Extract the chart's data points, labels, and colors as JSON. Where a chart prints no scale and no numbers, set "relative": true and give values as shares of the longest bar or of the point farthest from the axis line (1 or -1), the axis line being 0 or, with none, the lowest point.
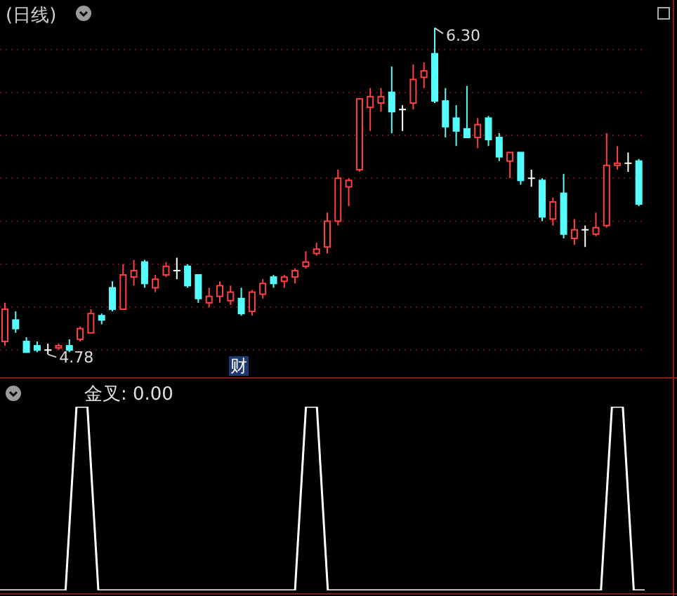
{
  "chart_data": [
    {
      "type": "candlestick",
      "title": "(日线)",
      "categories": [
        null,
        null,
        null,
        null,
        null,
        null,
        null,
        null,
        null,
        null,
        null,
        null,
        null,
        null,
        null,
        null,
        null,
        null,
        null,
        null,
        null,
        null,
        null,
        null,
        null,
        null,
        null,
        null,
        null,
        null,
        null,
        null,
        null,
        null,
        null,
        null,
        null,
        null,
        null,
        null,
        null,
        null,
        null,
        null,
        null,
        null,
        null,
        null,
        null,
        null,
        null,
        null,
        null,
        null,
        null,
        null,
        null,
        null,
        null,
        null
      ],
      "ohlc": [
        [
          4.84,
          5.02,
          4.82,
          4.99
        ],
        [
          4.94,
          4.98,
          4.88,
          4.9
        ],
        [
          4.84,
          4.86,
          4.79,
          4.79
        ],
        [
          4.82,
          4.84,
          4.79,
          4.8
        ],
        [
          4.8,
          4.83,
          4.78,
          4.8
        ],
        [
          4.81,
          4.83,
          4.8,
          4.82
        ],
        [
          4.82,
          4.85,
          4.79,
          4.8
        ],
        [
          4.85,
          4.91,
          4.84,
          4.9
        ],
        [
          4.88,
          4.99,
          4.88,
          4.97
        ],
        [
          4.96,
          4.97,
          4.92,
          4.94
        ],
        [
          5.09,
          5.12,
          4.98,
          4.99
        ],
        [
          4.99,
          5.2,
          4.99,
          5.15
        ],
        [
          5.14,
          5.22,
          5.1,
          5.17
        ],
        [
          5.21,
          5.22,
          5.09,
          5.11
        ],
        [
          5.09,
          5.15,
          5.07,
          5.13
        ],
        [
          5.15,
          5.21,
          5.14,
          5.19
        ],
        [
          5.17,
          5.23,
          5.13,
          5.17
        ],
        [
          5.19,
          5.2,
          5.09,
          5.1
        ],
        [
          5.15,
          5.15,
          5.02,
          5.04
        ],
        [
          5.02,
          5.09,
          5.0,
          5.05
        ],
        [
          5.05,
          5.12,
          5.02,
          5.1
        ],
        [
          5.03,
          5.1,
          5.01,
          5.07
        ],
        [
          5.04,
          5.09,
          4.96,
          4.97
        ],
        [
          4.98,
          5.08,
          4.96,
          5.07
        ],
        [
          5.06,
          5.13,
          5.04,
          5.11
        ],
        [
          5.14,
          5.15,
          5.09,
          5.11
        ],
        [
          5.12,
          5.15,
          5.09,
          5.14
        ],
        [
          5.14,
          5.18,
          5.11,
          5.17
        ],
        [
          5.19,
          5.26,
          5.18,
          5.21
        ],
        [
          5.25,
          5.3,
          5.24,
          5.27
        ],
        [
          5.28,
          5.44,
          5.25,
          5.4
        ],
        [
          5.4,
          5.64,
          5.38,
          5.6
        ],
        [
          5.56,
          5.6,
          5.47,
          5.59
        ],
        [
          5.64,
          5.97,
          5.63,
          5.97
        ],
        [
          5.93,
          6.02,
          5.82,
          5.98
        ],
        [
          5.95,
          6.02,
          5.91,
          5.98
        ],
        [
          6.0,
          6.12,
          5.81,
          5.91
        ],
        [
          5.92,
          5.94,
          5.82,
          5.92
        ],
        [
          5.95,
          6.13,
          5.92,
          6.06
        ],
        [
          6.07,
          6.14,
          6.02,
          6.1
        ],
        [
          6.18,
          6.3,
          5.95,
          5.96
        ],
        [
          5.96,
          6.02,
          5.79,
          5.84
        ],
        [
          5.88,
          5.94,
          5.75,
          5.82
        ],
        [
          5.83,
          6.03,
          5.79,
          5.79
        ],
        [
          5.79,
          5.88,
          5.74,
          5.85
        ],
        [
          5.88,
          5.89,
          5.75,
          5.78
        ],
        [
          5.79,
          5.81,
          5.68,
          5.7
        ],
        [
          5.68,
          5.72,
          5.6,
          5.72
        ],
        [
          5.72,
          5.72,
          5.57,
          5.59
        ],
        [
          5.6,
          5.64,
          5.56,
          5.6
        ],
        [
          5.59,
          5.6,
          5.4,
          5.42
        ],
        [
          5.41,
          5.51,
          5.38,
          5.49
        ],
        [
          5.53,
          5.62,
          5.32,
          5.34
        ],
        [
          5.32,
          5.41,
          5.29,
          5.36
        ],
        [
          5.36,
          5.38,
          5.28,
          5.36
        ],
        [
          5.34,
          5.44,
          5.33,
          5.37
        ],
        [
          5.38,
          5.81,
          5.37,
          5.66
        ],
        [
          5.66,
          5.75,
          5.64,
          5.67
        ],
        [
          5.67,
          5.72,
          5.63,
          5.67
        ],
        [
          5.68,
          5.69,
          5.47,
          5.48
        ]
      ],
      "colors": [
        "#ff4040",
        "#54fcfc",
        "#54fcfc",
        "#54fcfc",
        "#ffffff",
        "#ff4040",
        "#54fcfc",
        "#ff4040",
        "#ff4040",
        "#54fcfc",
        "#54fcfc",
        "#ff4040",
        "#ff4040",
        "#54fcfc",
        "#ff4040",
        "#ff4040",
        "#ffffff",
        "#54fcfc",
        "#54fcfc",
        "#ff4040",
        "#ff4040",
        "#ff4040",
        "#54fcfc",
        "#ff4040",
        "#ff4040",
        "#54fcfc",
        "#ff4040",
        "#ff4040",
        "#ff4040",
        "#ff4040",
        "#ff4040",
        "#ff4040",
        "#ff4040",
        "#ff4040",
        "#ff4040",
        "#ff4040",
        "#54fcfc",
        "#ffffff",
        "#ff4040",
        "#ff4040",
        "#54fcfc",
        "#54fcfc",
        "#54fcfc",
        "#54fcfc",
        "#ff4040",
        "#54fcfc",
        "#54fcfc",
        "#ff4040",
        "#54fcfc",
        "#ffffff",
        "#54fcfc",
        "#ff4040",
        "#54fcfc",
        "#ff4040",
        "#ffffff",
        "#ff4040",
        "#ff4040",
        "#ff4040",
        "#ffffff",
        "#54fcfc"
      ],
      "ylim": [
        4.68,
        6.43
      ],
      "yticks": [
        {
          "value": 4.8,
          "label": null
        },
        {
          "value": 5.0,
          "label": null
        },
        {
          "value": 5.2,
          "label": null
        },
        {
          "value": 5.4,
          "label": null
        },
        {
          "value": 5.6,
          "label": null
        },
        {
          "value": 5.8,
          "label": null
        },
        {
          "value": 6.0,
          "label": null
        },
        {
          "value": 6.2,
          "label": null
        }
      ],
      "grid": "y",
      "annotations": [
        "6.30",
        "4.78",
        "财"
      ]
    },
    {
      "type": "line",
      "title": "金叉: 0.00",
      "relative": true,
      "categories": [
        null,
        null,
        null,
        null,
        null,
        null,
        null,
        null,
        null,
        null,
        null,
        null,
        null,
        null,
        null,
        null,
        null,
        null,
        null,
        null,
        null,
        null,
        null,
        null,
        null,
        null,
        null,
        null,
        null,
        null,
        null,
        null,
        null,
        null,
        null,
        null,
        null,
        null,
        null,
        null,
        null,
        null,
        null,
        null,
        null,
        null,
        null,
        null,
        null,
        null,
        null,
        null,
        null,
        null,
        null,
        null,
        null,
        null,
        null,
        null
      ],
      "series": [
        {
          "color": "#ffffff",
          "values": [
            0,
            0,
            0,
            0,
            0,
            0,
            0,
            1,
            1,
            0,
            0,
            0,
            0,
            0,
            0,
            0,
            0,
            0,
            0,
            0,
            0,
            0,
            0,
            0,
            0,
            0,
            0,
            0,
            1,
            1,
            0,
            0,
            0,
            0,
            0,
            0,
            0,
            0,
            0,
            0,
            0,
            0,
            0,
            0,
            0,
            0,
            0,
            0,
            0,
            0,
            0,
            0,
            0,
            0,
            0,
            0,
            1,
            1,
            0,
            0
          ]
        }
      ]
    }
  ]
}
